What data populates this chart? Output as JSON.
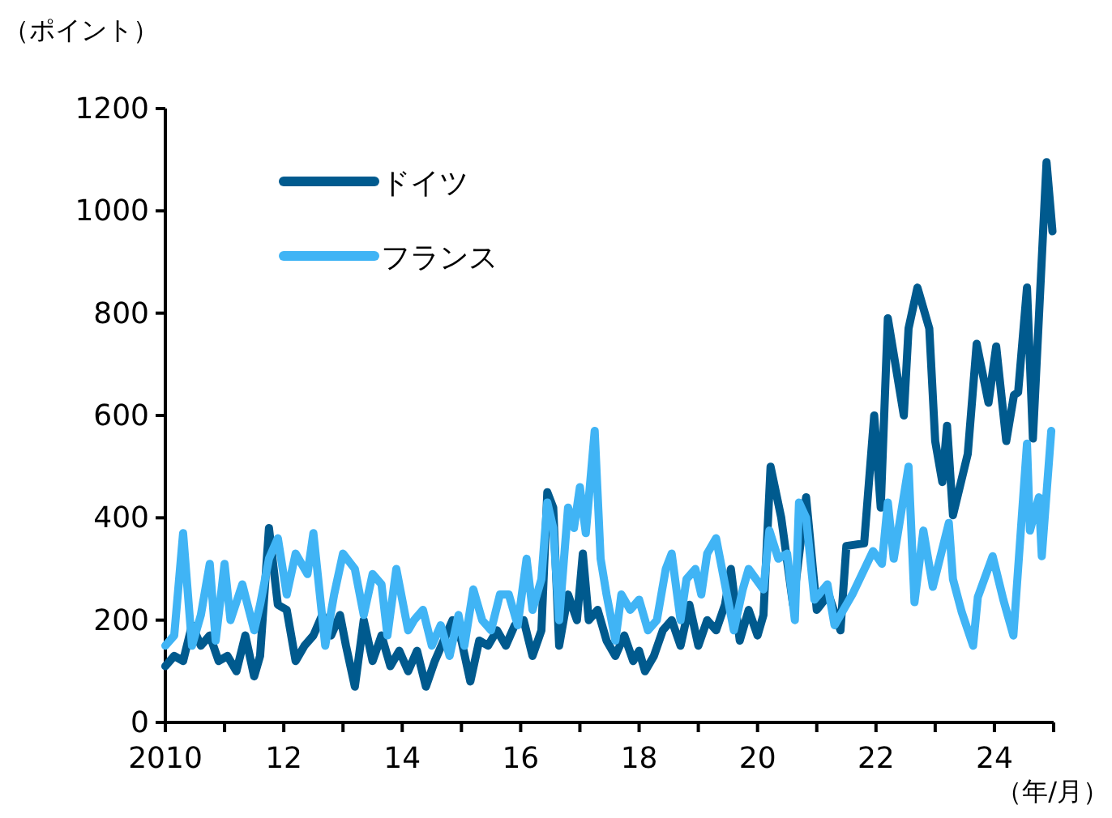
{
  "chart_data": {
    "type": "line",
    "ylabel": "（ポイント）",
    "xlabel": "（年/月）",
    "legend": "top left",
    "grid": false,
    "marker": "none",
    "line_style": "solid",
    "xlim": [
      2010,
      2025
    ],
    "ylim": [
      0,
      1200
    ],
    "yticks": [
      0,
      200,
      400,
      600,
      800,
      1000,
      1200
    ],
    "xticks": [
      {
        "value": 2010,
        "label": "2010"
      },
      {
        "value": 2011,
        "label": null
      },
      {
        "value": 2012,
        "label": "12"
      },
      {
        "value": 2013,
        "label": null
      },
      {
        "value": 2014,
        "label": "14"
      },
      {
        "value": 2015,
        "label": null
      },
      {
        "value": 2016,
        "label": "16"
      },
      {
        "value": 2017,
        "label": null
      },
      {
        "value": 2018,
        "label": "18"
      },
      {
        "value": 2019,
        "label": null
      },
      {
        "value": 2020,
        "label": "20"
      },
      {
        "value": 2021,
        "label": null
      },
      {
        "value": 2022,
        "label": "22"
      },
      {
        "value": 2023,
        "label": null
      },
      {
        "value": 2024,
        "label": "24"
      },
      {
        "value": 2025,
        "label": null
      }
    ],
    "series": [
      {
        "name": "ドイツ",
        "color": "#005a8e",
        "x": [
          2010.0,
          2010.15,
          2010.3,
          2010.45,
          2010.6,
          2010.75,
          2010.9,
          2011.05,
          2011.2,
          2011.35,
          2011.5,
          2011.6,
          2011.75,
          2011.9,
          2012.05,
          2012.2,
          2012.35,
          2012.5,
          2012.65,
          2012.8,
          2012.95,
          2013.05,
          2013.2,
          2013.35,
          2013.5,
          2013.65,
          2013.8,
          2013.95,
          2014.1,
          2014.25,
          2014.4,
          2014.55,
          2014.7,
          2014.85,
          2015.0,
          2015.15,
          2015.3,
          2015.45,
          2015.6,
          2015.75,
          2015.9,
          2016.05,
          2016.2,
          2016.35,
          2016.45,
          2016.55,
          2016.65,
          2016.8,
          2016.95,
          2017.05,
          2017.15,
          2017.3,
          2017.45,
          2017.6,
          2017.75,
          2017.9,
          2018.0,
          2018.1,
          2018.25,
          2018.4,
          2018.55,
          2018.7,
          2018.85,
          2019.0,
          2019.15,
          2019.3,
          2019.45,
          2019.55,
          2019.7,
          2019.85,
          2020.0,
          2020.1,
          2020.22,
          2020.4,
          2020.6,
          2020.82,
          2021.0,
          2021.2,
          2021.4,
          2021.5,
          2021.8,
          2021.97,
          2022.08,
          2022.2,
          2022.47,
          2022.55,
          2022.7,
          2022.9,
          2023.0,
          2023.12,
          2023.2,
          2023.3,
          2023.55,
          2023.7,
          2023.9,
          2024.03,
          2024.2,
          2024.33,
          2024.4,
          2024.55,
          2024.65,
          2024.88,
          2024.98
        ],
        "values": [
          110,
          130,
          120,
          190,
          150,
          170,
          120,
          130,
          100,
          170,
          90,
          130,
          380,
          230,
          220,
          120,
          150,
          170,
          210,
          170,
          210,
          150,
          70,
          200,
          120,
          170,
          110,
          140,
          100,
          140,
          70,
          120,
          160,
          200,
          160,
          80,
          160,
          150,
          180,
          150,
          190,
          200,
          130,
          180,
          450,
          420,
          150,
          250,
          200,
          330,
          200,
          220,
          160,
          130,
          170,
          120,
          140,
          100,
          130,
          180,
          200,
          150,
          230,
          150,
          200,
          180,
          230,
          300,
          160,
          220,
          170,
          210,
          500,
          400,
          230,
          440,
          220,
          250,
          180,
          345,
          350,
          600,
          420,
          790,
          600,
          770,
          850,
          770,
          550,
          470,
          580,
          405,
          525,
          740,
          625,
          735,
          550,
          640,
          645,
          850,
          555,
          1095,
          960
        ]
      },
      {
        "name": "フランス",
        "color": "#40b4f5",
        "x": [
          2010.0,
          2010.15,
          2010.3,
          2010.45,
          2010.6,
          2010.75,
          2010.85,
          2011.0,
          2011.1,
          2011.3,
          2011.5,
          2011.6,
          2011.75,
          2011.9,
          2012.05,
          2012.2,
          2012.4,
          2012.5,
          2012.7,
          2012.85,
          2013.0,
          2013.2,
          2013.35,
          2013.5,
          2013.65,
          2013.75,
          2013.9,
          2014.1,
          2014.2,
          2014.35,
          2014.5,
          2014.65,
          2014.8,
          2014.95,
          2015.05,
          2015.2,
          2015.35,
          2015.5,
          2015.65,
          2015.8,
          2015.95,
          2016.1,
          2016.2,
          2016.35,
          2016.45,
          2016.55,
          2016.65,
          2016.8,
          2016.9,
          2017.0,
          2017.1,
          2017.25,
          2017.35,
          2017.45,
          2017.6,
          2017.7,
          2017.85,
          2018.0,
          2018.15,
          2018.3,
          2018.45,
          2018.55,
          2018.7,
          2018.8,
          2018.95,
          2019.05,
          2019.15,
          2019.3,
          2019.45,
          2019.6,
          2019.75,
          2019.85,
          2020.1,
          2020.2,
          2020.35,
          2020.5,
          2020.63,
          2020.7,
          2020.82,
          2020.96,
          2021.18,
          2021.3,
          2021.6,
          2021.95,
          2022.1,
          2022.2,
          2022.3,
          2022.55,
          2022.65,
          2022.8,
          2022.96,
          2023.23,
          2023.3,
          2023.45,
          2023.64,
          2023.72,
          2023.97,
          2024.15,
          2024.32,
          2024.55,
          2024.6,
          2024.75,
          2024.8,
          2024.96
        ],
        "values": [
          150,
          170,
          370,
          150,
          210,
          310,
          160,
          310,
          200,
          270,
          180,
          230,
          320,
          360,
          250,
          330,
          290,
          370,
          150,
          250,
          330,
          300,
          210,
          290,
          270,
          170,
          300,
          180,
          200,
          220,
          150,
          190,
          130,
          210,
          150,
          260,
          200,
          180,
          250,
          250,
          190,
          320,
          220,
          280,
          430,
          380,
          200,
          420,
          380,
          460,
          370,
          570,
          320,
          250,
          160,
          250,
          220,
          240,
          180,
          200,
          300,
          330,
          200,
          280,
          300,
          250,
          330,
          360,
          270,
          180,
          260,
          300,
          260,
          375,
          320,
          330,
          200,
          430,
          400,
          240,
          270,
          190,
          250,
          335,
          310,
          430,
          320,
          500,
          235,
          375,
          265,
          390,
          280,
          215,
          150,
          245,
          325,
          240,
          170,
          545,
          375,
          440,
          325,
          570
        ]
      }
    ]
  }
}
